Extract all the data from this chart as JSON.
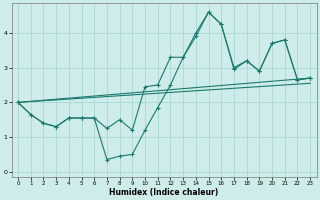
{
  "xlabel": "Humidex (Indice chaleur)",
  "bg_color": "#ceecea",
  "grid_color": "#a8d8d4",
  "line_color": "#1a7a6e",
  "xlim": [
    -0.5,
    23.5
  ],
  "ylim": [
    -0.15,
    4.85
  ],
  "yticks": [
    0,
    1,
    2,
    3,
    4
  ],
  "xticks": [
    0,
    1,
    2,
    3,
    4,
    5,
    6,
    7,
    8,
    9,
    10,
    11,
    12,
    13,
    14,
    15,
    16,
    17,
    18,
    19,
    20,
    21,
    22,
    23
  ],
  "series1_x": [
    0,
    1,
    2,
    3,
    4,
    5,
    6,
    7,
    8,
    9,
    10,
    11,
    12,
    13,
    14,
    15,
    16,
    17,
    18,
    19,
    20,
    21,
    22,
    23
  ],
  "series1_y": [
    2.0,
    1.65,
    1.4,
    1.3,
    1.55,
    1.55,
    1.55,
    0.35,
    0.45,
    0.5,
    1.2,
    1.85,
    2.5,
    3.3,
    4.0,
    4.6,
    4.25,
    2.95,
    3.2,
    2.9,
    3.7,
    3.8,
    2.65,
    2.7
  ],
  "series2_x": [
    0,
    1,
    2,
    3,
    4,
    5,
    6,
    7,
    8,
    9,
    10,
    11,
    12,
    13,
    14,
    15,
    16,
    17,
    18,
    19,
    20,
    21,
    22,
    23
  ],
  "series2_y": [
    2.0,
    1.65,
    1.4,
    1.3,
    1.55,
    1.55,
    1.55,
    1.25,
    1.5,
    1.2,
    2.45,
    2.5,
    3.3,
    3.3,
    3.9,
    4.6,
    4.25,
    3.0,
    3.2,
    2.9,
    3.7,
    3.8,
    2.65,
    2.7
  ],
  "series3_x": [
    0,
    23
  ],
  "series3_y": [
    2.0,
    2.7
  ],
  "series4_x": [
    0,
    23
  ],
  "series4_y": [
    2.0,
    2.55
  ]
}
